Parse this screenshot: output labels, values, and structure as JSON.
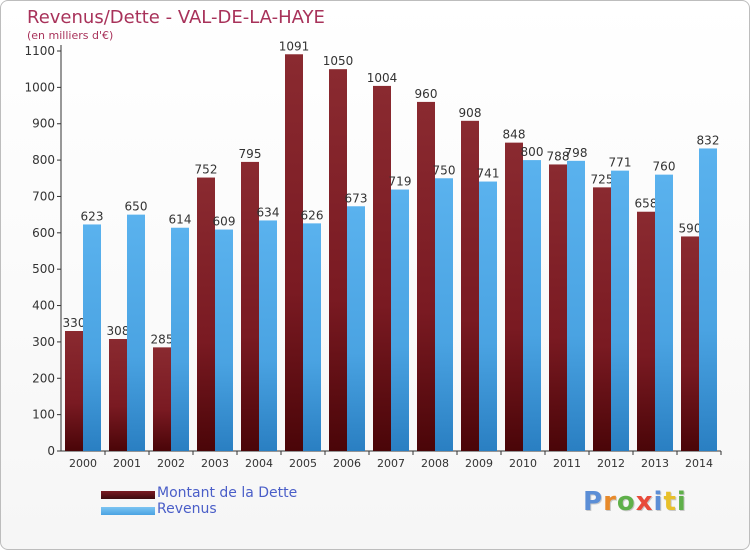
{
  "title": "Revenus/Dette - VAL-DE-LA-HAYE",
  "subtitle": "(en milliers d'€)",
  "colors": {
    "dette": "#7a1a22",
    "revenus": "#4aa3e2",
    "title": "#a8325a",
    "legend_text": "#4a5ec8"
  },
  "logo": {
    "text": "Proxiti",
    "letters": [
      {
        "ch": "P",
        "color": "#5b8ed6"
      },
      {
        "ch": "r",
        "color": "#e88a2a"
      },
      {
        "ch": "o",
        "color": "#5fb04a"
      },
      {
        "ch": "x",
        "color": "#e84a3a"
      },
      {
        "ch": "i",
        "color": "#5b8ed6"
      },
      {
        "ch": "t",
        "color": "#e8c02a"
      },
      {
        "ch": "i",
        "color": "#5fb04a"
      }
    ]
  },
  "chart_data": {
    "type": "bar",
    "categories": [
      "2000",
      "2001",
      "2002",
      "2003",
      "2004",
      "2005",
      "2006",
      "2007",
      "2008",
      "2009",
      "2010",
      "2011",
      "2012",
      "2013",
      "2014"
    ],
    "series": [
      {
        "name": "Montant de la Dette",
        "values": [
          330,
          308,
          285,
          752,
          795,
          1091,
          1050,
          1004,
          960,
          908,
          848,
          788,
          725,
          658,
          590
        ]
      },
      {
        "name": "Revenus",
        "values": [
          623,
          650,
          614,
          609,
          634,
          626,
          673,
          719,
          750,
          741,
          800,
          798,
          771,
          760,
          832
        ]
      }
    ],
    "ylim": [
      0,
      1100
    ],
    "yticks": [
      0,
      100,
      200,
      300,
      400,
      500,
      600,
      700,
      800,
      900,
      1000,
      1100
    ],
    "grid": false,
    "legend": "bottom-left"
  }
}
